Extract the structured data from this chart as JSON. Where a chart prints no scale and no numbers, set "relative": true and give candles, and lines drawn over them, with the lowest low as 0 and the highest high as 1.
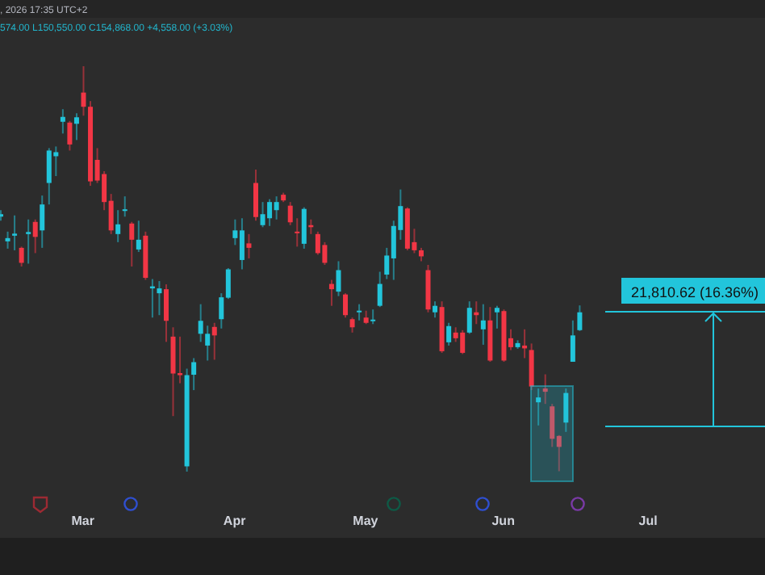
{
  "chart_data": {
    "type": "candlestick",
    "relative": true,
    "annotations": [
      ", 2026 17:35 UTC+2",
      "574.00 L150,550.00 C154,868.00 +4,558.00 (+3.03%)",
      "21,810.62 (16.36%)"
    ],
    "categories": [
      null,
      null,
      null,
      null,
      null,
      null,
      null,
      null,
      null,
      null,
      null,
      null,
      "Mar",
      null,
      null,
      null,
      null,
      null,
      null,
      null,
      null,
      null,
      null,
      null,
      null,
      null,
      null,
      null,
      null,
      null,
      null,
      null,
      null,
      null,
      "Apr",
      null,
      null,
      null,
      null,
      null,
      null,
      null,
      null,
      null,
      null,
      null,
      null,
      null,
      null,
      null,
      null,
      null,
      null,
      "May",
      null,
      null,
      null,
      null,
      null,
      null,
      null,
      null,
      null,
      null,
      null,
      null,
      null,
      null,
      null,
      null,
      null,
      null,
      null,
      "Jun",
      null,
      null,
      null,
      null,
      null,
      null,
      null,
      null,
      null,
      null,
      null,
      null,
      null,
      null,
      null,
      null,
      null,
      null,
      null,
      null,
      "Jul",
      null,
      null,
      null,
      null,
      null,
      null,
      null,
      null,
      null,
      null,
      null,
      null,
      null,
      null,
      null,
      null
    ],
    "ohlc": [
      [
        0.629,
        0.645,
        0.619,
        0.635
      ],
      [
        0.568,
        0.592,
        0.55,
        0.576
      ],
      [
        0.582,
        0.632,
        0.546,
        0.587
      ],
      [
        0.552,
        0.555,
        0.506,
        0.515
      ],
      [
        0.586,
        0.622,
        0.513,
        0.591
      ],
      [
        0.616,
        0.622,
        0.539,
        0.579
      ],
      [
        0.595,
        0.681,
        0.552,
        0.659
      ],
      [
        0.712,
        0.798,
        0.659,
        0.792
      ],
      [
        0.778,
        0.802,
        0.729,
        0.788
      ],
      [
        0.863,
        0.894,
        0.834,
        0.875
      ],
      [
        0.861,
        0.865,
        0.792,
        0.807
      ],
      [
        0.858,
        0.884,
        0.818,
        0.874
      ],
      [
        0.935,
        1,
        0.878,
        0.9
      ],
      [
        0.9,
        0.914,
        0.705,
        0.716
      ],
      [
        0.769,
        0.798,
        0.712,
        0.718
      ],
      [
        0.734,
        0.741,
        0.645,
        0.665
      ],
      [
        0.668,
        0.685,
        0.586,
        0.595
      ],
      [
        0.586,
        0.645,
        0.566,
        0.61
      ],
      [
        0.643,
        0.679,
        0.629,
        0.647
      ],
      [
        0.612,
        0.616,
        0.506,
        0.572
      ],
      [
        0.548,
        0.619,
        0.542,
        0.572
      ],
      [
        0.582,
        0.592,
        0.473,
        0.478
      ],
      [
        0.452,
        0.475,
        0.38,
        0.457
      ],
      [
        0.44,
        0.47,
        0.386,
        0.452
      ],
      [
        0.45,
        0.462,
        0.32,
        0.372
      ],
      [
        0.333,
        0.356,
        0.137,
        0.242
      ],
      [
        0.243,
        0.333,
        0.218,
        0.238
      ],
      [
        0.013,
        0.254,
        0,
        0.238
      ],
      [
        0.239,
        0.28,
        0.201,
        0.27
      ],
      [
        0.34,
        0.413,
        0.32,
        0.372
      ],
      [
        0.311,
        0.36,
        0.274,
        0.34
      ],
      [
        0.357,
        0.367,
        0.276,
        0.336
      ],
      [
        0.376,
        0.44,
        0.353,
        0.43
      ],
      [
        0.429,
        0.502,
        0.426,
        0.499
      ],
      [
        0.576,
        0.622,
        0.559,
        0.595
      ],
      [
        0.522,
        0.625,
        0.499,
        0.595
      ],
      [
        0.563,
        0.586,
        0.526,
        0.552
      ],
      [
        0.712,
        0.745,
        0.619,
        0.628
      ],
      [
        0.608,
        0.665,
        0.603,
        0.635
      ],
      [
        0.625,
        0.672,
        0.606,
        0.665
      ],
      [
        0.645,
        0.679,
        0.622,
        0.665
      ],
      [
        0.683,
        0.688,
        0.665,
        0.669
      ],
      [
        0.656,
        0.665,
        0.608,
        0.615
      ],
      [
        0.592,
        0.625,
        0.555,
        0.59
      ],
      [
        0.562,
        0.652,
        0.55,
        0.648
      ],
      [
        0.608,
        0.622,
        0.586,
        0.603
      ],
      [
        0.586,
        0.592,
        0.535,
        0.539
      ],
      [
        0.559,
        0.566,
        0.51,
        0.515
      ],
      [
        0.463,
        0.473,
        0.409,
        0.45
      ],
      [
        0.444,
        0.519,
        0.433,
        0.497
      ],
      [
        0.437,
        0.44,
        0.38,
        0.386
      ],
      [
        0.376,
        0.38,
        0.343,
        0.356
      ],
      [
        0.393,
        0.413,
        0.373,
        0.397
      ],
      [
        0.38,
        0.397,
        0.364,
        0.367
      ],
      [
        0.371,
        0.4,
        0.364,
        0.375
      ],
      [
        0.409,
        0.493,
        0.406,
        0.463
      ],
      [
        0.486,
        0.552,
        0.475,
        0.533
      ],
      [
        0.526,
        0.619,
        0.473,
        0.606
      ],
      [
        0.596,
        0.696,
        0.572,
        0.655
      ],
      [
        0.649,
        0.652,
        0.546,
        0.55
      ],
      [
        0.566,
        0.599,
        0.539,
        0.546
      ],
      [
        0.546,
        0.552,
        0.519,
        0.531
      ],
      [
        0.497,
        0.51,
        0.393,
        0.4
      ],
      [
        0.393,
        0.42,
        0.38,
        0.409
      ],
      [
        0.406,
        0.42,
        0.293,
        0.297
      ],
      [
        0.319,
        0.367,
        0.311,
        0.359
      ],
      [
        0.343,
        0.356,
        0.32,
        0.329
      ],
      [
        0.343,
        0.349,
        0.29,
        0.293
      ],
      [
        0.343,
        0.42,
        0.34,
        0.404
      ],
      [
        0.393,
        0.42,
        0.364,
        0.386
      ],
      [
        0.351,
        0.413,
        0.313,
        0.373
      ],
      [
        0.373,
        0.406,
        0.271,
        0.274
      ],
      [
        0.393,
        0.409,
        0.353,
        0.404
      ],
      [
        0.396,
        0.4,
        0.271,
        0.274
      ],
      [
        0.329,
        0.351,
        0.3,
        0.307
      ],
      [
        0.307,
        0.324,
        0.303,
        0.317
      ],
      [
        0.311,
        0.351,
        0.28,
        0.304
      ],
      [
        0.3,
        0.316,
        0.201,
        0.21
      ],
      [
        0.171,
        0.205,
        0.114,
        0.183
      ],
      [
        0.205,
        0.24,
        0.167,
        0.197
      ],
      [
        0.161,
        0.167,
        0.061,
        0.081
      ],
      [
        0.088,
        0.09,
        0.001,
        0.061
      ],
      [
        0.121,
        0.205,
        0.098,
        0.194
      ],
      [
        0.271,
        0.373,
        0.271,
        0.336
      ],
      [
        0.349,
        0.41,
        0.347,
        0.393
      ],
      null,
      null,
      null,
      null,
      null,
      null,
      null,
      null,
      null,
      null,
      null,
      null,
      null,
      null,
      null,
      null,
      null,
      null,
      null,
      null,
      null,
      null,
      null,
      null,
      null,
      null
    ],
    "colors": [
      "#22c5db",
      "#22c5db",
      "#22c5db",
      "#f23645",
      "#22c5db",
      "#f23645",
      "#22c5db",
      "#22c5db",
      "#22c5db",
      "#22c5db",
      "#f23645",
      "#22c5db",
      "#f23645",
      "#f23645",
      "#f23645",
      "#f23645",
      "#f23645",
      "#22c5db",
      "#22c5db",
      "#f23645",
      "#22c5db",
      "#f23645",
      "#22c5db",
      "#22c5db",
      "#f23645",
      "#f23645",
      "#f23645",
      "#22c5db",
      "#22c5db",
      "#22c5db",
      "#22c5db",
      "#f23645",
      "#22c5db",
      "#22c5db",
      "#22c5db",
      "#22c5db",
      "#f23645",
      "#f23645",
      "#22c5db",
      "#22c5db",
      "#22c5db",
      "#f23645",
      "#f23645",
      "#f23645",
      "#22c5db",
      "#f23645",
      "#f23645",
      "#f23645",
      "#f23645",
      "#22c5db",
      "#f23645",
      "#f23645",
      "#22c5db",
      "#f23645",
      "#22c5db",
      "#22c5db",
      "#22c5db",
      "#22c5db",
      "#22c5db",
      "#f23645",
      "#f23645",
      "#f23645",
      "#f23645",
      "#22c5db",
      "#f23645",
      "#22c5db",
      "#f23645",
      "#f23645",
      "#22c5db",
      "#f23645",
      "#22c5db",
      "#f23645",
      "#22c5db",
      "#f23645",
      "#f23645",
      "#22c5db",
      "#f23645",
      "#f23645",
      "#22c5db",
      "#f23645",
      "#f23645",
      "#f23645",
      "#22c5db",
      "#22c5db",
      "#22c5db",
      null,
      null,
      null,
      null,
      null,
      null,
      null,
      null,
      null,
      null,
      null,
      null,
      null,
      null,
      null,
      null,
      null,
      null,
      null,
      null,
      null,
      null,
      null,
      null,
      null,
      null
    ]
  }
}
